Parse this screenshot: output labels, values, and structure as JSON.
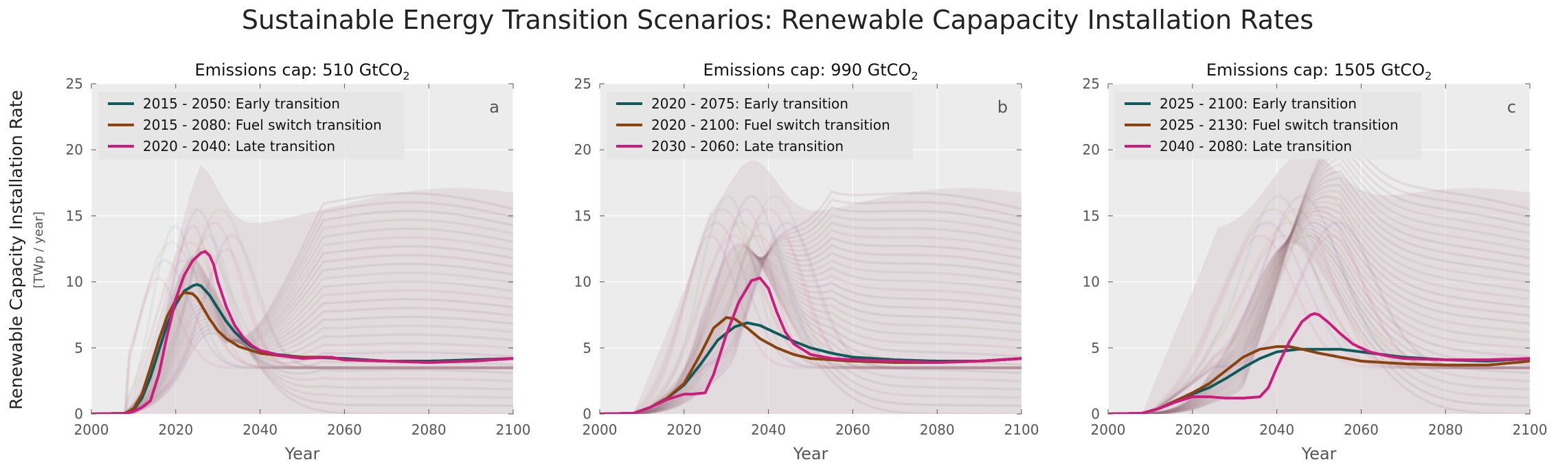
{
  "figure": {
    "title": "Sustainable Energy Transition Scenarios: Renewable Capapacity Installation Rates",
    "ylabel": "Renewable Capacity Installation Rate",
    "yunit": "[TWp / year]",
    "xlabel": "Year",
    "colors": {
      "background": "#ececec",
      "grid": "#ffffff",
      "early": "#0f5a5a",
      "fuel": "#8a420f",
      "late": "#cc1d7f"
    }
  },
  "chart_data": [
    {
      "type": "line",
      "title_prefix": "Emissions cap: 510 GtCO",
      "title_sub": "2",
      "panel_label": "a",
      "xlabel": "Year",
      "xlim": [
        2000,
        2100
      ],
      "ylim": [
        0,
        25
      ],
      "xticks": [
        2000,
        2020,
        2040,
        2060,
        2080,
        2100
      ],
      "yticks": [
        0,
        5,
        10,
        15,
        20,
        25
      ],
      "grid": true,
      "legend_position": "top-left",
      "series": [
        {
          "name": "2015 - 2050: Early transition",
          "color": "#0f5a5a",
          "x": [
            2000,
            2008,
            2010,
            2012,
            2014,
            2016,
            2018,
            2020,
            2022,
            2024,
            2025,
            2026,
            2028,
            2030,
            2032,
            2034,
            2036,
            2038,
            2040,
            2044,
            2050,
            2060,
            2070,
            2080,
            2090,
            2100
          ],
          "y": [
            0,
            0.05,
            0.3,
            1.2,
            2.8,
            4.8,
            6.8,
            8.3,
            9.3,
            9.7,
            9.8,
            9.7,
            9.0,
            8.0,
            7.0,
            6.2,
            5.6,
            5.1,
            4.8,
            4.5,
            4.3,
            4.2,
            4.0,
            4.0,
            4.1,
            4.2
          ]
        },
        {
          "name": "2015 - 2080: Fuel switch transition",
          "color": "#8a420f",
          "x": [
            2000,
            2008,
            2010,
            2012,
            2014,
            2016,
            2018,
            2020,
            2022,
            2024,
            2025,
            2026,
            2028,
            2030,
            2032,
            2035,
            2040,
            2045,
            2050,
            2056,
            2060,
            2070,
            2080,
            2090,
            2100
          ],
          "y": [
            0,
            0.05,
            0.4,
            1.5,
            3.5,
            5.6,
            7.4,
            8.6,
            9.2,
            9.1,
            8.8,
            8.3,
            7.2,
            6.3,
            5.7,
            5.1,
            4.6,
            4.4,
            4.3,
            4.3,
            4.1,
            4.0,
            3.9,
            4.0,
            4.2
          ]
        },
        {
          "name": "2020 - 2040: Late transition",
          "color": "#cc1d7f",
          "x": [
            2000,
            2008,
            2010,
            2012,
            2014,
            2016,
            2018,
            2020,
            2022,
            2024,
            2026,
            2027,
            2028,
            2029,
            2030,
            2032,
            2034,
            2036,
            2038,
            2040,
            2045,
            2050,
            2057,
            2060,
            2070,
            2080,
            2090,
            2100
          ],
          "y": [
            0,
            0.02,
            0.2,
            0.5,
            1.0,
            3.0,
            6.0,
            8.7,
            10.5,
            11.6,
            12.2,
            12.3,
            12.0,
            11.3,
            10.0,
            8.1,
            6.7,
            5.8,
            5.2,
            4.8,
            4.4,
            4.2,
            4.3,
            4.1,
            4.0,
            3.9,
            4.0,
            4.2
          ]
        }
      ]
    },
    {
      "type": "line",
      "title_prefix": "Emissions cap: 990 GtCO",
      "title_sub": "2",
      "panel_label": "b",
      "xlabel": "Year",
      "xlim": [
        2000,
        2100
      ],
      "ylim": [
        0,
        25
      ],
      "xticks": [
        2000,
        2020,
        2040,
        2060,
        2080,
        2100
      ],
      "yticks": [
        0,
        5,
        10,
        15,
        20,
        25
      ],
      "grid": true,
      "legend_position": "top-left",
      "series": [
        {
          "name": "2020 - 2075: Early transition",
          "color": "#0f5a5a",
          "x": [
            2000,
            2008,
            2012,
            2016,
            2020,
            2024,
            2028,
            2032,
            2035,
            2038,
            2042,
            2046,
            2050,
            2055,
            2060,
            2070,
            2080,
            2090,
            2100
          ],
          "y": [
            0,
            0.05,
            0.5,
            1.2,
            2.2,
            3.8,
            5.6,
            6.6,
            6.9,
            6.7,
            6.1,
            5.5,
            5.0,
            4.6,
            4.3,
            4.1,
            4.0,
            4.0,
            4.2
          ]
        },
        {
          "name": "2020 - 2100: Fuel switch transition",
          "color": "#8a420f",
          "x": [
            2000,
            2008,
            2012,
            2016,
            2020,
            2024,
            2027,
            2030,
            2032,
            2035,
            2038,
            2042,
            2046,
            2050,
            2060,
            2070,
            2080,
            2090,
            2100
          ],
          "y": [
            0,
            0.05,
            0.5,
            1.2,
            2.3,
            4.6,
            6.5,
            7.3,
            7.2,
            6.5,
            5.7,
            5.0,
            4.5,
            4.2,
            4.0,
            3.9,
            3.9,
            4.0,
            4.2
          ]
        },
        {
          "name": "2030 - 2060: Late transition",
          "color": "#cc1d7f",
          "x": [
            2000,
            2008,
            2012,
            2016,
            2020,
            2022,
            2025,
            2027,
            2030,
            2033,
            2036,
            2038,
            2040,
            2042,
            2044,
            2046,
            2050,
            2055,
            2060,
            2070,
            2080,
            2090,
            2100
          ],
          "y": [
            0,
            0.05,
            0.5,
            1.1,
            1.5,
            1.5,
            1.6,
            3.0,
            6.0,
            8.5,
            10.1,
            10.3,
            9.5,
            7.7,
            6.2,
            5.3,
            4.5,
            4.2,
            4.1,
            4.0,
            3.9,
            4.0,
            4.2
          ]
        }
      ]
    },
    {
      "type": "line",
      "title_prefix": "Emissions cap: 1505 GtCO",
      "title_sub": "2",
      "panel_label": "c",
      "xlabel": "Year",
      "xlim": [
        2000,
        2100
      ],
      "ylim": [
        0,
        25
      ],
      "xticks": [
        2000,
        2020,
        2040,
        2060,
        2080,
        2100
      ],
      "yticks": [
        0,
        5,
        10,
        15,
        20,
        25
      ],
      "grid": true,
      "legend_position": "top-left",
      "series": [
        {
          "name": "2025 - 2100: Early transition",
          "color": "#0f5a5a",
          "x": [
            2000,
            2008,
            2012,
            2016,
            2020,
            2024,
            2028,
            2032,
            2036,
            2040,
            2045,
            2050,
            2055,
            2060,
            2065,
            2070,
            2080,
            2090,
            2100
          ],
          "y": [
            0,
            0.05,
            0.4,
            1.0,
            1.5,
            2.0,
            2.7,
            3.5,
            4.2,
            4.7,
            4.9,
            4.9,
            4.9,
            4.7,
            4.5,
            4.3,
            4.1,
            4.0,
            4.2
          ]
        },
        {
          "name": "2025 - 2130: Fuel switch transition",
          "color": "#8a420f",
          "x": [
            2000,
            2008,
            2012,
            2016,
            2020,
            2024,
            2028,
            2032,
            2036,
            2040,
            2043,
            2046,
            2050,
            2055,
            2060,
            2070,
            2080,
            2090,
            2100
          ],
          "y": [
            0,
            0.05,
            0.4,
            1.0,
            1.6,
            2.3,
            3.3,
            4.3,
            4.9,
            5.1,
            5.1,
            4.9,
            4.6,
            4.3,
            4.0,
            3.8,
            3.7,
            3.7,
            4.0
          ]
        },
        {
          "name": "2040 - 2080: Late transition",
          "color": "#cc1d7f",
          "x": [
            2000,
            2008,
            2012,
            2016,
            2020,
            2024,
            2028,
            2032,
            2036,
            2038,
            2040,
            2043,
            2046,
            2048,
            2049,
            2050,
            2052,
            2055,
            2058,
            2062,
            2066,
            2070,
            2080,
            2090,
            2100
          ],
          "y": [
            0,
            0.05,
            0.4,
            0.9,
            1.3,
            1.3,
            1.2,
            1.2,
            1.3,
            2.0,
            3.5,
            5.5,
            7.0,
            7.5,
            7.6,
            7.5,
            7.0,
            6.1,
            5.3,
            4.7,
            4.4,
            4.2,
            4.1,
            4.1,
            4.2
          ]
        }
      ]
    }
  ]
}
